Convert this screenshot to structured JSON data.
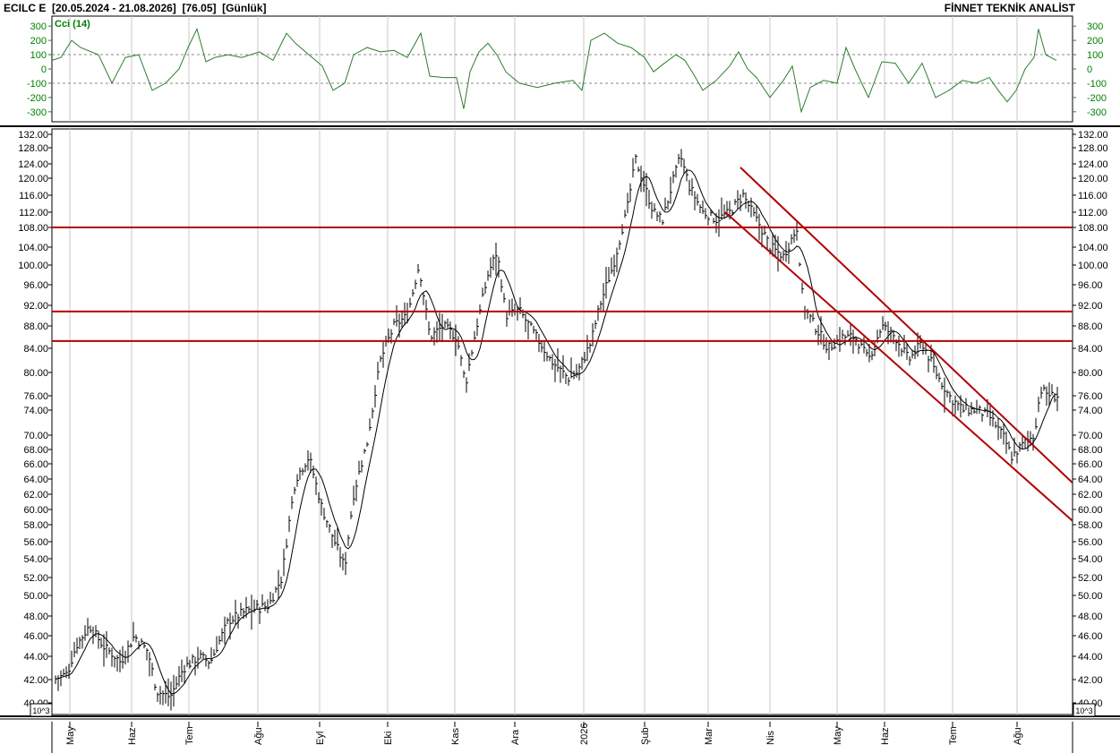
{
  "header": {
    "symbol": "ECILC E",
    "range": "[20.05.2024 - 21.08.2026]",
    "last": "[76.05]",
    "period": "[Günlük]",
    "brand": "FİNNET TEKNİK ANALİST"
  },
  "cci_panel": {
    "label": "Cci (14)",
    "ticks": [
      "300",
      "200",
      "100",
      "0",
      "-100",
      "-200",
      "-300"
    ],
    "tick_values": [
      300,
      200,
      100,
      0,
      -100,
      -200,
      -300
    ],
    "ylim": [
      -370,
      370
    ],
    "overbought": 100,
    "oversold": -100,
    "line_color": "#2e7d2e"
  },
  "price_panel": {
    "ticks": [
      "132.00",
      "128.00",
      "124.00",
      "120.00",
      "116.00",
      "112.00",
      "108.00",
      "104.00",
      "100.00",
      "96.00",
      "92.00",
      "88.00",
      "84.00",
      "80.00",
      "76.00",
      "74.00",
      "70.00",
      "68.00",
      "66.00",
      "64.00",
      "62.00",
      "60.00",
      "58.00",
      "56.00",
      "54.00",
      "52.00",
      "50.00",
      "48.00",
      "46.00",
      "44.00",
      "42.00",
      "40.00"
    ],
    "tick_values": [
      132,
      128,
      124,
      120,
      116,
      112,
      108,
      104,
      100,
      96,
      92,
      88,
      84,
      80,
      76,
      74,
      70,
      68,
      66,
      64,
      62,
      60,
      58,
      56,
      54,
      52,
      50,
      48,
      46,
      44,
      42,
      40
    ],
    "scale_note": "10^3",
    "bar_color": "#000000",
    "ma_color": "#000000",
    "trend_color": "#b30000"
  },
  "months": [
    "May",
    "Haz",
    "Tem",
    "Ağu",
    "Eyl",
    "Eki",
    "Kas",
    "Ara",
    "2026",
    "Şub",
    "Mar",
    "Nis",
    "May",
    "Haz",
    "Tem",
    "Ağu"
  ],
  "chart_data": {
    "type": "ohlc",
    "x": [
      "May",
      "Haz",
      "Tem",
      "Ağu",
      "Eyl",
      "Eki",
      "Kas",
      "Ara",
      "2026",
      "Şub",
      "Mar",
      "Nis",
      "May",
      "Haz",
      "Tem",
      "Ağu"
    ],
    "price_close_monthly": [
      44.5,
      44.0,
      43.5,
      48.0,
      58.0,
      84.0,
      86.0,
      84.0,
      90.0,
      118.0,
      112.0,
      102.0,
      84.0,
      86.0,
      74.0,
      76.05
    ],
    "cci_monthly": [
      150,
      -50,
      200,
      120,
      100,
      120,
      -150,
      180,
      -100,
      260,
      -50,
      -150,
      150,
      -100,
      -150,
      180
    ],
    "horizontal_levels": [
      108.0,
      90.8,
      85.3
    ],
    "channel_upper": {
      "from": [
        11,
        123.0
      ],
      "to": [
        15.9,
        63.5
      ]
    },
    "channel_lower": {
      "from": [
        10.8,
        112.0
      ],
      "to": [
        15.9,
        58.5
      ]
    },
    "last_value": 76.05
  }
}
